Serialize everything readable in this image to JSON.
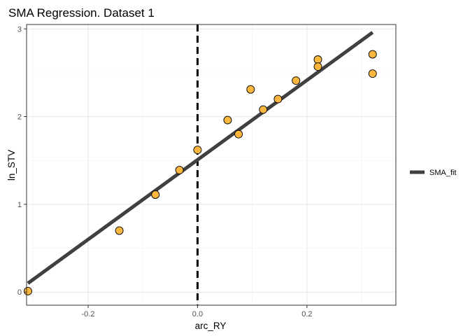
{
  "chart_data": {
    "type": "scatter",
    "title": "SMA Regression. Dataset 1",
    "xlabel": "arc_RY",
    "ylabel": "ln_STV",
    "xlim": [
      -0.3125,
      0.3625
    ],
    "ylim": [
      -0.15,
      3.05
    ],
    "x_ticks": [
      -0.2,
      0.0,
      0.2
    ],
    "x_tick_labels": [
      "-0.2",
      "0.0",
      "0.2"
    ],
    "y_ticks": [
      0,
      1,
      2,
      3
    ],
    "y_tick_labels": [
      "0",
      "1",
      "2",
      "3"
    ],
    "grid": true,
    "points": [
      {
        "x": -0.31,
        "y": 0.01
      },
      {
        "x": -0.143,
        "y": 0.7
      },
      {
        "x": -0.077,
        "y": 1.11
      },
      {
        "x": -0.033,
        "y": 1.39
      },
      {
        "x": 0.0,
        "y": 1.62
      },
      {
        "x": 0.055,
        "y": 1.96
      },
      {
        "x": 0.075,
        "y": 1.8
      },
      {
        "x": 0.097,
        "y": 2.31
      },
      {
        "x": 0.12,
        "y": 2.08
      },
      {
        "x": 0.147,
        "y": 2.2
      },
      {
        "x": 0.18,
        "y": 2.41
      },
      {
        "x": 0.22,
        "y": 2.65
      },
      {
        "x": 0.22,
        "y": 2.57
      },
      {
        "x": 0.32,
        "y": 2.71
      },
      {
        "x": 0.32,
        "y": 2.49
      }
    ],
    "fit_line": {
      "name": "SMA_fit",
      "x": [
        -0.31,
        0.32
      ],
      "y": [
        0.1,
        2.96
      ],
      "color": "#404040"
    },
    "vline": {
      "x": 0.0,
      "style": "dashed",
      "color": "#000000"
    },
    "point_fill": "#FDB73E",
    "point_stroke": "#000000",
    "legend": {
      "position": "right",
      "entries": [
        "SMA_fit"
      ]
    }
  }
}
